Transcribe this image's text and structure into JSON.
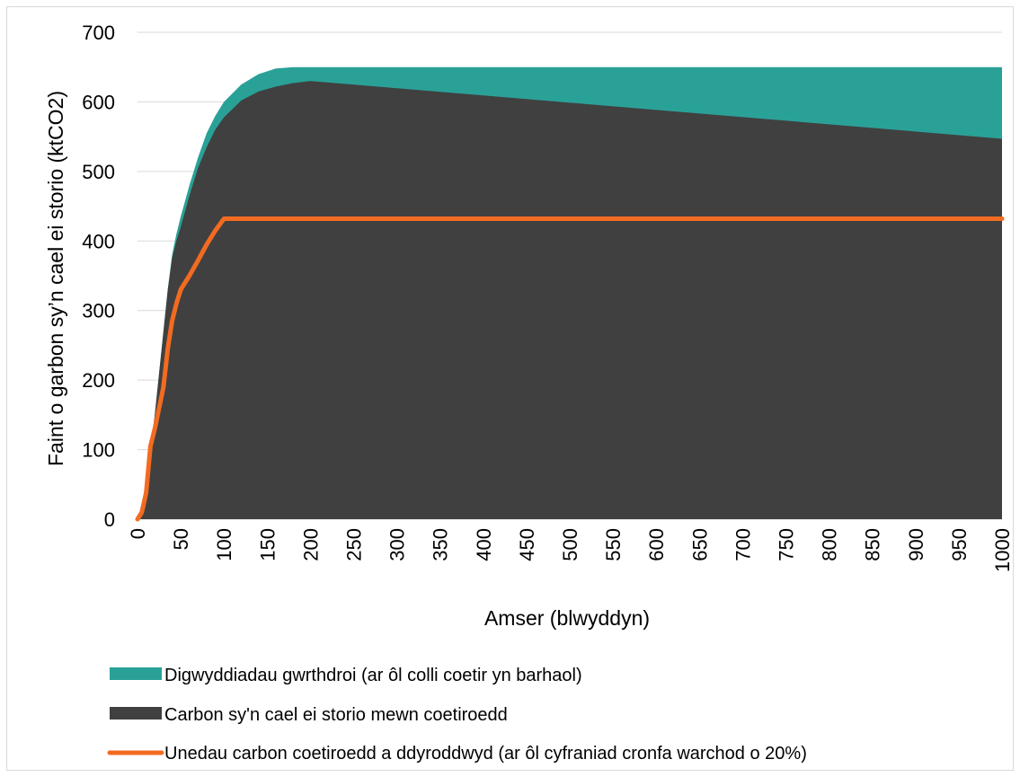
{
  "chart_data": {
    "type": "area",
    "xlabel": "Amser (blwyddyn)",
    "ylabel": "Faint o garbon sy’n cael ei storio (ktCO2)",
    "xlim": [
      0,
      1000
    ],
    "ylim": [
      0,
      700
    ],
    "x_ticks": [
      "0",
      "50",
      "100",
      "150",
      "200",
      "250",
      "300",
      "350",
      "400",
      "450",
      "500",
      "550",
      "600",
      "650",
      "700",
      "750",
      "800",
      "850",
      "900",
      "950",
      "1000"
    ],
    "y_ticks": [
      "0",
      "100",
      "200",
      "300",
      "400",
      "500",
      "600",
      "700"
    ],
    "grid": "horizontal",
    "legend_position": "bottom",
    "series": [
      {
        "name": "Digwyddiadau gwrthdroi (ar ôl colli coetir yn barhaol)",
        "kind": "area-top",
        "color": "#2aa197",
        "x": [
          0,
          5,
          10,
          15,
          20,
          25,
          30,
          35,
          40,
          45,
          50,
          60,
          70,
          80,
          90,
          100,
          120,
          140,
          160,
          180,
          200,
          1000
        ],
        "y": [
          0,
          12,
          40,
          100,
          150,
          210,
          270,
          330,
          380,
          410,
          435,
          480,
          520,
          555,
          580,
          600,
          625,
          640,
          648,
          650,
          650,
          650
        ]
      },
      {
        "name": "Carbon sy'n cael ei storio mewn coetiroedd",
        "kind": "area",
        "color": "#404040",
        "x": [
          0,
          5,
          10,
          15,
          20,
          25,
          30,
          35,
          40,
          45,
          50,
          60,
          70,
          80,
          90,
          100,
          120,
          140,
          160,
          180,
          200,
          1000
        ],
        "y": [
          0,
          12,
          40,
          100,
          150,
          210,
          270,
          330,
          375,
          400,
          420,
          465,
          505,
          535,
          560,
          578,
          602,
          615,
          622,
          627,
          630,
          547
        ]
      },
      {
        "name": "Unedau carbon coetiroedd a ddyroddwyd (ar ôl cyfraniad cronfa warchod o 20%)",
        "kind": "line",
        "color": "#f26b21",
        "x": [
          0,
          5,
          10,
          15,
          20,
          25,
          30,
          35,
          40,
          45,
          50,
          60,
          70,
          80,
          90,
          100,
          1000
        ],
        "y": [
          0,
          10,
          38,
          105,
          130,
          160,
          190,
          245,
          285,
          310,
          330,
          350,
          372,
          395,
          415,
          432,
          432
        ]
      }
    ]
  }
}
